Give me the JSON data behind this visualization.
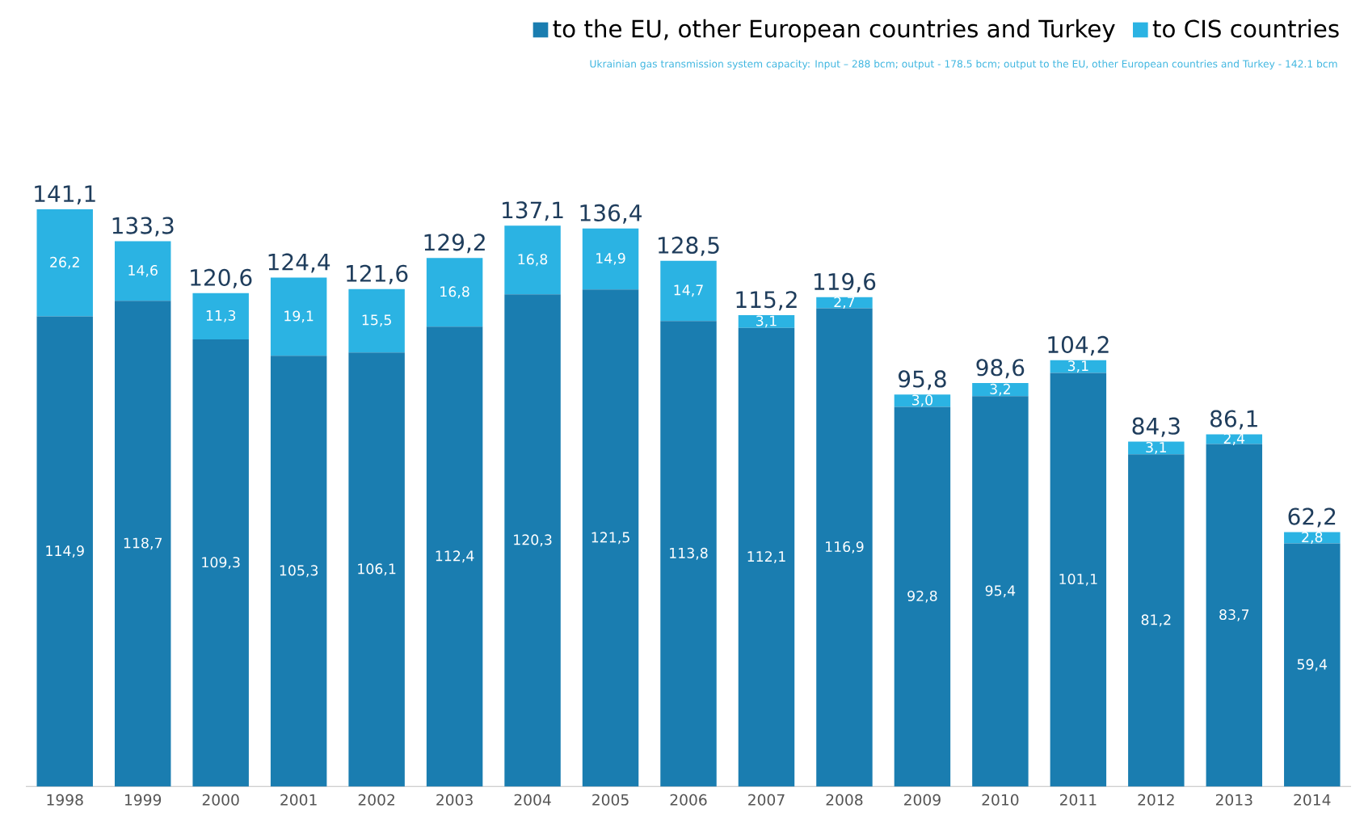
{
  "chart_data": {
    "type": "bar",
    "stacked": true,
    "subtitle": "Ukrainian gas transmission system capacity: Input – 288 bcm; output - 178.5 bcm; output to the EU, other European countries and Turkey - 142.1 bcm",
    "categories": [
      "1998",
      "1999",
      "2000",
      "2001",
      "2002",
      "2003",
      "2004",
      "2005",
      "2006",
      "2007",
      "2008",
      "2009",
      "2010",
      "2011",
      "2012",
      "2013",
      "2014"
    ],
    "series": [
      {
        "name": "to the EU, other European countries and Turkey",
        "color": "#1a7db0",
        "values": [
          114.9,
          118.7,
          109.3,
          105.3,
          106.1,
          112.4,
          120.3,
          121.5,
          113.8,
          112.1,
          116.9,
          92.8,
          95.4,
          101.1,
          81.2,
          83.7,
          59.4
        ],
        "value_labels": [
          "114,9",
          "118,7",
          "109,3",
          "105,3",
          "106,1",
          "112,4",
          "120,3",
          "121,5",
          "113,8",
          "112,1",
          "116,9",
          "92,8",
          "95,4",
          "101,1",
          "81,2",
          "83,7",
          "59,4"
        ]
      },
      {
        "name": "to CIS countries",
        "color": "#2bb3e3",
        "values": [
          26.2,
          14.6,
          11.3,
          19.1,
          15.5,
          16.8,
          16.8,
          14.9,
          14.7,
          3.1,
          2.7,
          3.0,
          3.2,
          3.1,
          3.1,
          2.4,
          2.8
        ],
        "value_labels": [
          "26,2",
          "14,6",
          "11,3",
          "19,1",
          "15,5",
          "16,8",
          "16,8",
          "14,9",
          "14,7",
          "3,1",
          "2,7",
          "3,0",
          "3,2",
          "3,1",
          "3,1",
          "2,4",
          "2,8"
        ]
      }
    ],
    "totals": [
      "141,1",
      "133,3",
      "120,6",
      "124,4",
      "121,6",
      "129,2",
      "137,1",
      "136,4",
      "128,5",
      "115,2",
      "119,6",
      "95,8",
      "98,6",
      "104,2",
      "84,3",
      "86,1",
      "62,2"
    ],
    "tick_labels": "x",
    "legend": "top right"
  }
}
